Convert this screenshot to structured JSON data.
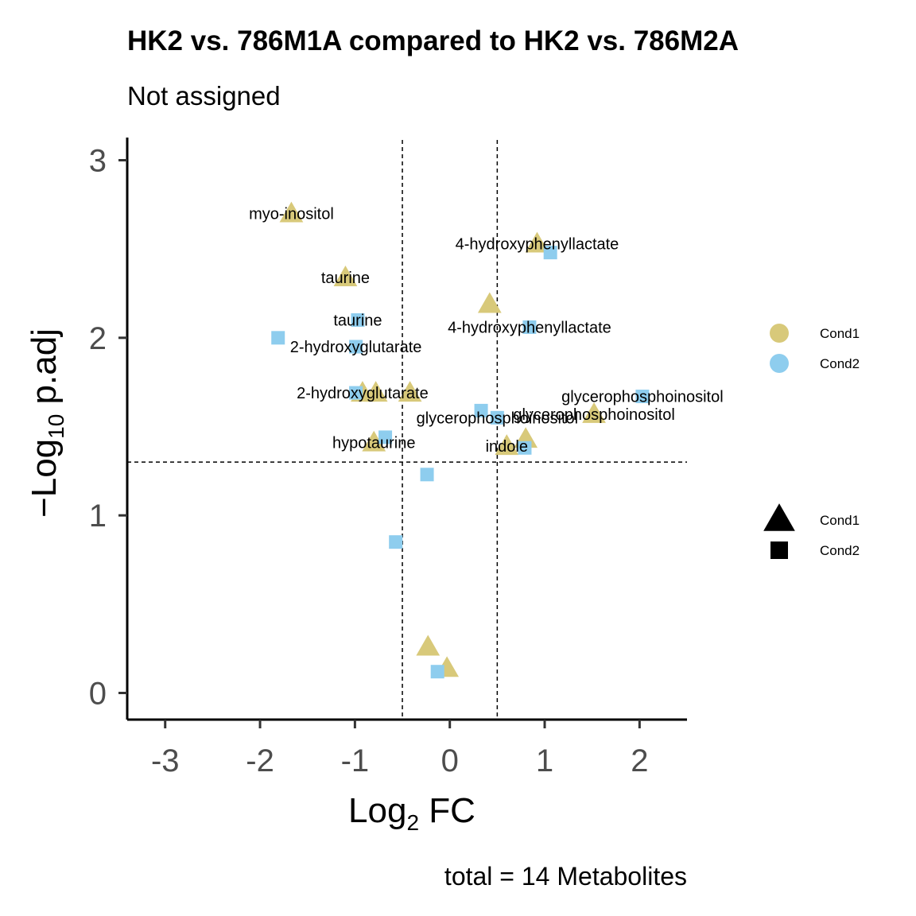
{
  "chart_data": {
    "type": "scatter",
    "title": "HK2 vs. 786M1A compared to HK2 vs. 786M2A",
    "subtitle": "Not assigned",
    "xlabel": {
      "main": "Log",
      "sub": "2",
      "rest": " FC"
    },
    "ylabel": {
      "prefix": "−Log",
      "sub": "10",
      "rest": " p.adj"
    },
    "xlim": [
      -3.4,
      2.5
    ],
    "ylim": [
      -0.15,
      3.15
    ],
    "xticks": [
      -3,
      -2,
      -1,
      0,
      1,
      2
    ],
    "xtick_labels": [
      "-3",
      "-2",
      "-1",
      "0",
      "1",
      "2"
    ],
    "yticks": [
      0,
      1,
      2,
      3
    ],
    "ytick_labels": [
      "0",
      "1",
      "2",
      "3"
    ],
    "vlines": [
      -0.5,
      0.5
    ],
    "hline": 1.3,
    "grid": false,
    "legend_color": {
      "position": "right",
      "entries": [
        {
          "label": "Cond1",
          "color": "#d8c97a"
        },
        {
          "label": "Cond2",
          "color": "#8ecdee"
        }
      ]
    },
    "legend_shape": {
      "position": "right",
      "entries": [
        {
          "label": "Cond1",
          "shape": "triangle"
        },
        {
          "label": "Cond2",
          "shape": "square"
        }
      ]
    },
    "series": [
      {
        "name": "Cond1",
        "color": "#d8c97a",
        "shape": "triangle",
        "points": [
          {
            "x": -1.67,
            "y": 2.7,
            "label": "myo-inositol"
          },
          {
            "x": -1.1,
            "y": 2.34,
            "label": "taurine"
          },
          {
            "x": 0.92,
            "y": 2.53,
            "label": "4-hydroxyphenyllactate"
          },
          {
            "x": 0.42,
            "y": 2.19,
            "label": ""
          },
          {
            "x": -0.92,
            "y": 1.69,
            "label": "2-hydroxyglutarate"
          },
          {
            "x": -0.78,
            "y": 1.69,
            "label": ""
          },
          {
            "x": -0.42,
            "y": 1.69,
            "label": ""
          },
          {
            "x": 1.52,
            "y": 1.57,
            "label": "glycerophosphoinositol"
          },
          {
            "x": -0.8,
            "y": 1.41,
            "label": "hypotaurine"
          },
          {
            "x": 0.6,
            "y": 1.39,
            "label": "indole"
          },
          {
            "x": 0.8,
            "y": 1.43,
            "label": ""
          },
          {
            "x": -0.23,
            "y": 0.26,
            "label": ""
          },
          {
            "x": -0.03,
            "y": 0.14,
            "label": ""
          }
        ]
      },
      {
        "name": "Cond2",
        "color": "#8ecdee",
        "shape": "square",
        "points": [
          {
            "x": 1.06,
            "y": 2.48,
            "label": ""
          },
          {
            "x": -0.97,
            "y": 2.1,
            "label": "taurine"
          },
          {
            "x": 0.84,
            "y": 2.06,
            "label": "4-hydroxyphenyllactate"
          },
          {
            "x": -1.81,
            "y": 2.0,
            "label": ""
          },
          {
            "x": -0.99,
            "y": 1.95,
            "label": "2-hydroxyglutarate"
          },
          {
            "x": -0.99,
            "y": 1.69,
            "label": ""
          },
          {
            "x": 2.03,
            "y": 1.67,
            "label": "glycerophosphoinositol"
          },
          {
            "x": 0.33,
            "y": 1.59,
            "label": ""
          },
          {
            "x": 0.5,
            "y": 1.55,
            "label": "glycerophosphoinositol"
          },
          {
            "x": -0.68,
            "y": 1.44,
            "label": ""
          },
          {
            "x": 0.79,
            "y": 1.38,
            "label": ""
          },
          {
            "x": -0.24,
            "y": 1.23,
            "label": ""
          },
          {
            "x": -0.57,
            "y": 0.85,
            "label": ""
          },
          {
            "x": -0.13,
            "y": 0.12,
            "label": ""
          }
        ]
      }
    ],
    "caption": "total = 14 Metabolites"
  }
}
